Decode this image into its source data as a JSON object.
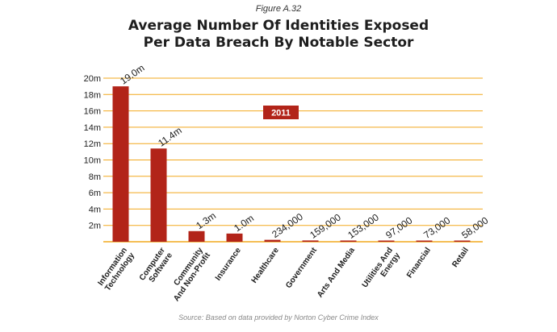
{
  "figure_label": "Figure A.32",
  "title_line1": "Average Number Of Identities Exposed",
  "title_line2": "Per Data Breach By Notable Sector",
  "source": "Source: Based on data provided by Norton Cyber Crime Index",
  "colors": {
    "bar": "#b22419",
    "grid": "#f2a81d",
    "badge": "#b22419"
  },
  "chart_data": {
    "type": "bar",
    "title": "Average Number Of Identities Exposed Per Data Breach By Notable Sector",
    "badge": "2011",
    "categories": [
      [
        "Information",
        "Technology"
      ],
      [
        "Computer",
        "Software"
      ],
      [
        "Community",
        "And Non-Profit"
      ],
      [
        "Insurance"
      ],
      [
        "Healthcare"
      ],
      [
        "Government"
      ],
      [
        "Arts And Media"
      ],
      [
        "Utilities And",
        "Energy"
      ],
      [
        "Financial"
      ],
      [
        "Retail"
      ]
    ],
    "values": [
      19000000,
      11400000,
      1300000,
      1000000,
      234000,
      159000,
      153000,
      97000,
      73000,
      58000
    ],
    "data_labels": [
      "19.0m",
      "11.4m",
      "1.3m",
      "1.0m",
      "234,000",
      "159,000",
      "153,000",
      "97,000",
      "73,000",
      "58,000"
    ],
    "y_ticks": [
      {
        "value": 2000000,
        "label": "2m"
      },
      {
        "value": 4000000,
        "label": "4m"
      },
      {
        "value": 6000000,
        "label": "6m"
      },
      {
        "value": 8000000,
        "label": "8m"
      },
      {
        "value": 10000000,
        "label": "10m"
      },
      {
        "value": 12000000,
        "label": "12m"
      },
      {
        "value": 14000000,
        "label": "14m"
      },
      {
        "value": 16000000,
        "label": "16m"
      },
      {
        "value": 18000000,
        "label": "18m"
      },
      {
        "value": 20000000,
        "label": "20m"
      }
    ],
    "ylim": [
      0,
      20000000
    ],
    "grid": true
  }
}
